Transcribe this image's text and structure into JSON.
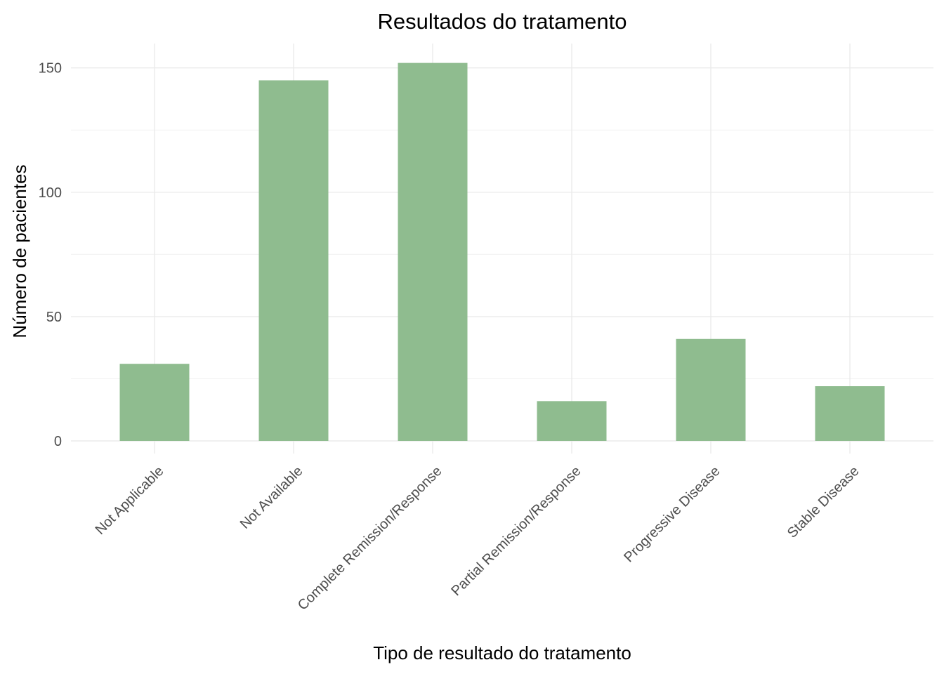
{
  "chart_data": {
    "type": "bar",
    "title": "Resultados do tratamento",
    "xlabel": "Tipo de resultado do tratamento",
    "ylabel": "Número de pacientes",
    "categories": [
      "Not Applicable",
      "Not Available",
      "Complete Remission/Response",
      "Partial Remission/Response",
      "Progressive Disease",
      "Stable Disease"
    ],
    "values": [
      31,
      145,
      152,
      16,
      41,
      22
    ],
    "ylim": [
      0,
      160
    ],
    "yticks": [
      0,
      50,
      100,
      150
    ],
    "grid": true,
    "legend": "none",
    "bar_color": "#8FBC8F"
  }
}
